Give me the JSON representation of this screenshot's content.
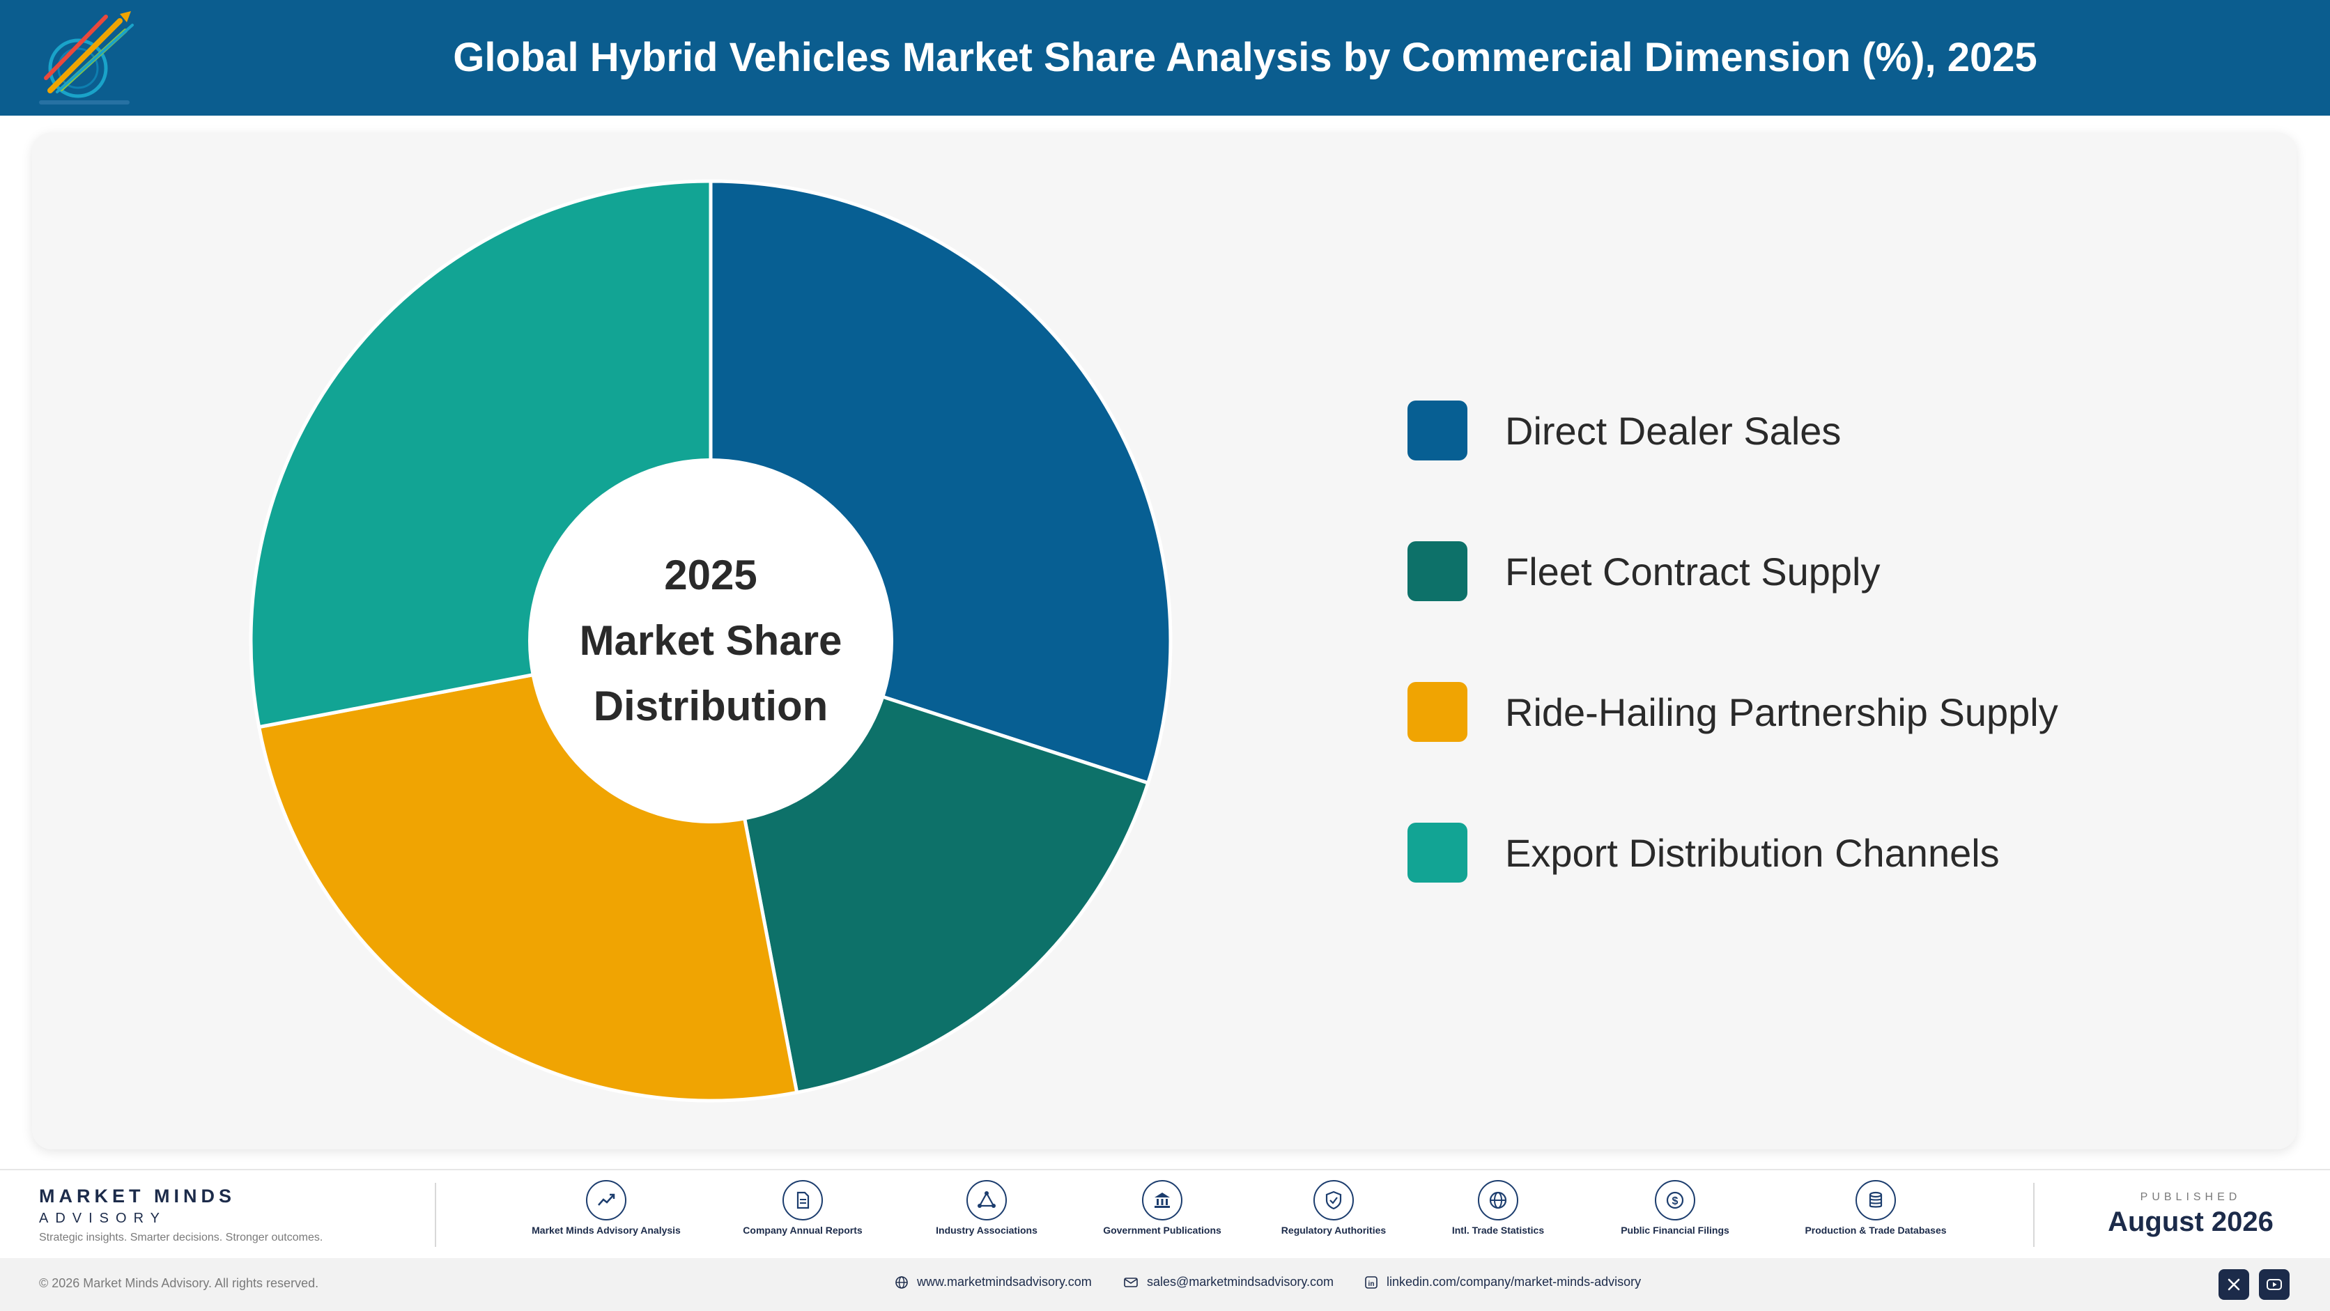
{
  "header": {
    "title": "Global Hybrid Vehicles Market Share Analysis by Commercial Dimension (%), 2025"
  },
  "colors": {
    "header_bg": "#0b5d8f",
    "direct_dealer": "#075f93",
    "fleet_contract": "#0d7169",
    "ride_hailing": "#f0a402",
    "export_distribution": "#12a494"
  },
  "chart_data": {
    "type": "pie",
    "variant": "donut",
    "center_label": [
      "2025",
      "Market Share",
      "Distribution"
    ],
    "categories": [
      "Direct Dealer Sales",
      "Fleet Contract Supply",
      "Ride-Hailing Partnership Supply",
      "Export Distribution Channels"
    ],
    "values": [
      30,
      17,
      25,
      28
    ],
    "colors": [
      "#075f93",
      "#0d7169",
      "#f0a402",
      "#12a494"
    ],
    "legend_position": "right"
  },
  "legend": {
    "items": [
      {
        "label": "Direct Dealer Sales",
        "color": "#075f93"
      },
      {
        "label": "Fleet Contract Supply",
        "color": "#0d7169"
      },
      {
        "label": "Ride-Hailing Partnership Supply",
        "color": "#f0a402"
      },
      {
        "label": "Export Distribution Channels",
        "color": "#12a494"
      }
    ]
  },
  "footer": {
    "brand_name": "MARKET MINDS",
    "brand_sub": "ADVISORY",
    "brand_tagline": "Strategic insights. Smarter decisions. Stronger outcomes.",
    "sources": [
      {
        "label": "Market Minds Advisory Analysis",
        "icon": "chart-line-icon"
      },
      {
        "label": "Company Annual Reports",
        "icon": "document-icon"
      },
      {
        "label": "Industry Associations",
        "icon": "network-icon"
      },
      {
        "label": "Government Publications",
        "icon": "government-building-icon"
      },
      {
        "label": "Regulatory Authorities",
        "icon": "shield-check-icon"
      },
      {
        "label": "Intl. Trade Statistics",
        "icon": "globe-icon"
      },
      {
        "label": "Public Financial Filings",
        "icon": "dollar-coin-icon"
      },
      {
        "label": "Production & Trade Databases",
        "icon": "database-icon"
      }
    ],
    "published_label": "PUBLISHED",
    "published_date": "August 2026"
  },
  "bottom_bar": {
    "copyright": "© 2026 Market Minds Advisory. All rights reserved.",
    "website": "www.marketmindsadvisory.com",
    "email": "sales@marketmindsadvisory.com",
    "linkedin": "linkedin.com/company/market-minds-advisory",
    "social": [
      "x-icon",
      "youtube-icon"
    ]
  }
}
